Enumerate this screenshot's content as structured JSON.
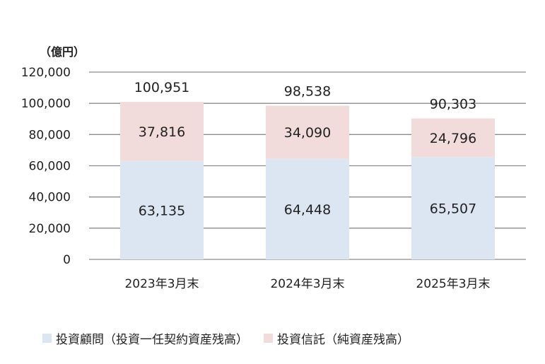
{
  "chart_data": {
    "type": "bar",
    "stacked": true,
    "unit_label": "（億円）",
    "categories": [
      "2023年3月末",
      "2024年3月末",
      "2025年3月末"
    ],
    "series": [
      {
        "name": "投資顧問（投資一任契約資産残高）",
        "color": "#dce6f2",
        "values": [
          63135,
          64448,
          65507
        ],
        "labels": [
          "63,135",
          "64,448",
          "65,507"
        ]
      },
      {
        "name": "投資信託（純資産残高）",
        "color": "#f2dcdb",
        "values": [
          37816,
          34090,
          24796
        ],
        "labels": [
          "37,816",
          "34,090",
          "24,796"
        ]
      }
    ],
    "totals": [
      100951,
      98538,
      90303
    ],
    "total_labels": [
      "100,951",
      "98,538",
      "90,303"
    ],
    "yticks": [
      0,
      20000,
      40000,
      60000,
      80000,
      100000,
      120000
    ],
    "ytick_labels": [
      "0",
      "20,000",
      "40,000",
      "60,000",
      "80,000",
      "100,000",
      "120,000"
    ],
    "ylim": [
      0,
      120000
    ],
    "grid": true,
    "legend_position": "bottom"
  }
}
